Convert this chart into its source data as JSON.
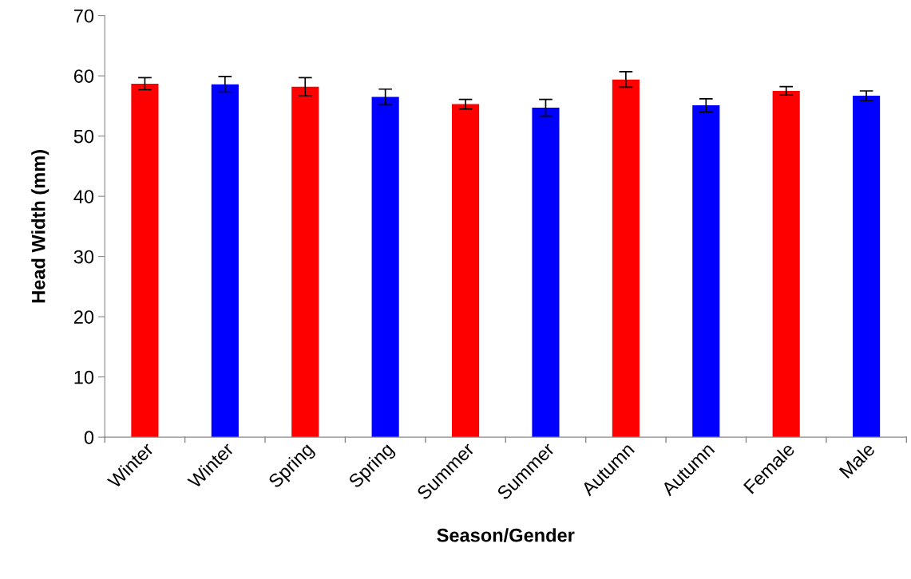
{
  "chart_data": {
    "type": "bar",
    "xlabel": "Season/Gender",
    "ylabel": "Head Width (mm)",
    "categories": [
      "Winter",
      "Winter",
      "Spring",
      "Spring",
      "Summer",
      "Summer",
      "Autumn",
      "Autumn",
      "Female",
      "Male"
    ],
    "values": [
      58.7,
      58.6,
      58.2,
      56.5,
      55.3,
      54.7,
      59.4,
      55.1,
      57.5,
      56.7
    ],
    "colors": [
      "#ff0000",
      "#0000ff",
      "#ff0000",
      "#0000ff",
      "#ff0000",
      "#0000ff",
      "#ff0000",
      "#0000ff",
      "#ff0000",
      "#0000ff"
    ],
    "errors": [
      1.0,
      1.3,
      1.5,
      1.3,
      0.8,
      1.4,
      1.3,
      1.1,
      0.7,
      0.8
    ],
    "ylim": [
      0,
      70
    ],
    "yticks": [
      0,
      10,
      20,
      30,
      40,
      50,
      60,
      70
    ],
    "grid": false,
    "legend": false
  }
}
